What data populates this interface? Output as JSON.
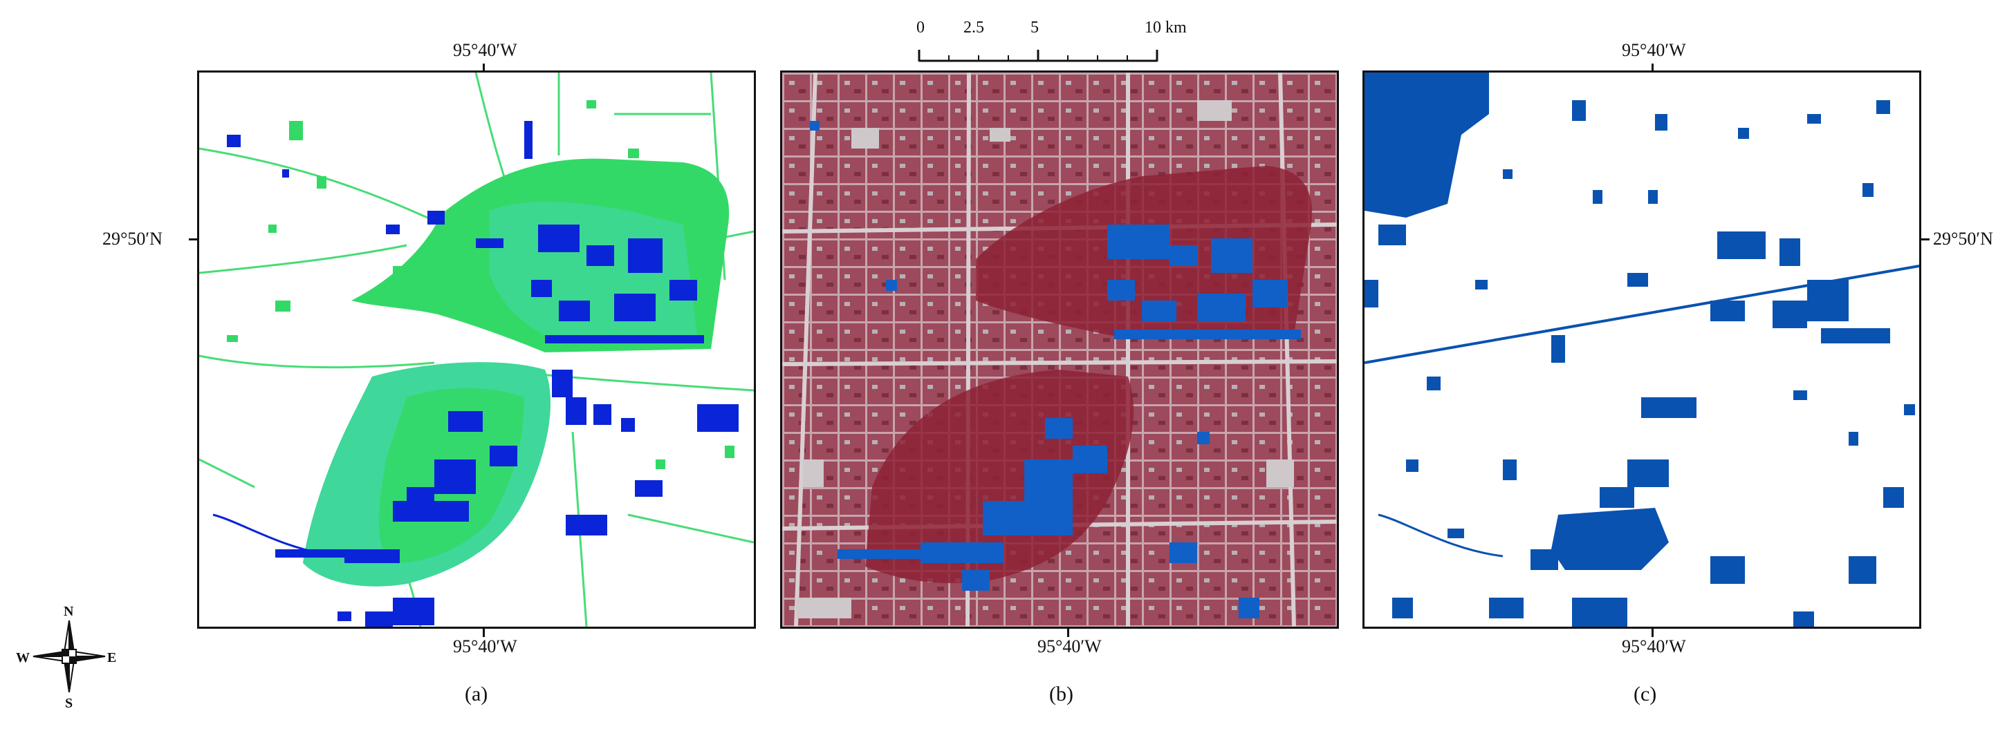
{
  "coordinates": {
    "lon_label": "95°40′W",
    "lat_label": "29°50′N"
  },
  "scale_bar": {
    "ticks": [
      "0",
      "2.5",
      "5",
      "10 km"
    ]
  },
  "compass": {
    "n": "N",
    "s": "S",
    "e": "E",
    "w": "W"
  },
  "panels": [
    {
      "id": "a",
      "caption": "(a)",
      "description": "classified flood extent"
    },
    {
      "id": "b",
      "caption": "(b)",
      "description": "false color composite with overlay"
    },
    {
      "id": "c",
      "caption": "(c)",
      "description": "water mask"
    }
  ],
  "colors": {
    "water_blue": "#0a24d8",
    "flood_green": "#33d966",
    "flood_teal": "#3fd79a",
    "overlay_blue": "#1060c8",
    "mask_blue": "#0a52b0",
    "false_color_red": "#a23d52"
  }
}
